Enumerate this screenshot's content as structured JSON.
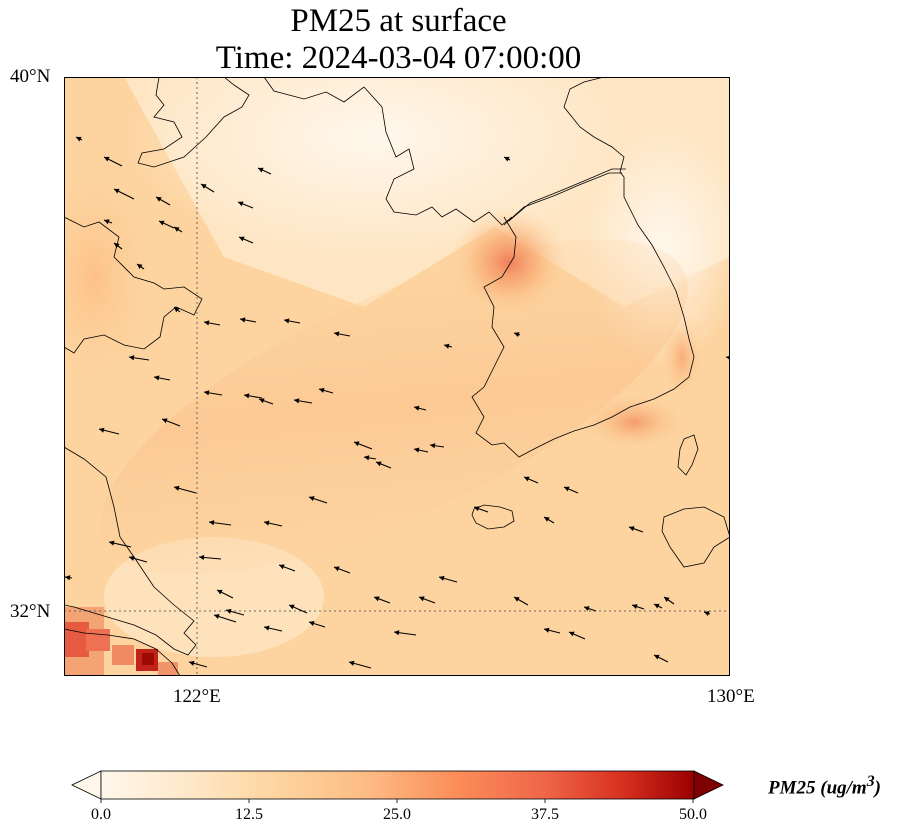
{
  "title": "PM25 at surface",
  "subtitle": "Time: 2024-03-04 07:00:00",
  "lat_ticks": [
    "40°N",
    "32°N"
  ],
  "lon_ticks": [
    "122°E",
    "130°E"
  ],
  "map": {
    "variable": "PM25",
    "level": "surface",
    "lon_range": [
      120,
      130
    ],
    "lat_range": [
      31,
      40
    ],
    "gridlines": "dotted at 122°E and 32°N",
    "overlay": "wind vectors (arrows)",
    "colormap": "OrRd"
  },
  "colorbar": {
    "label": "PM25 (ug/m",
    "label_sup": "3",
    "label_close": ")",
    "ticks": [
      "0.0",
      "12.5",
      "25.0",
      "37.5",
      "50.0"
    ],
    "min": 0,
    "max": 50,
    "extend": "both"
  }
}
